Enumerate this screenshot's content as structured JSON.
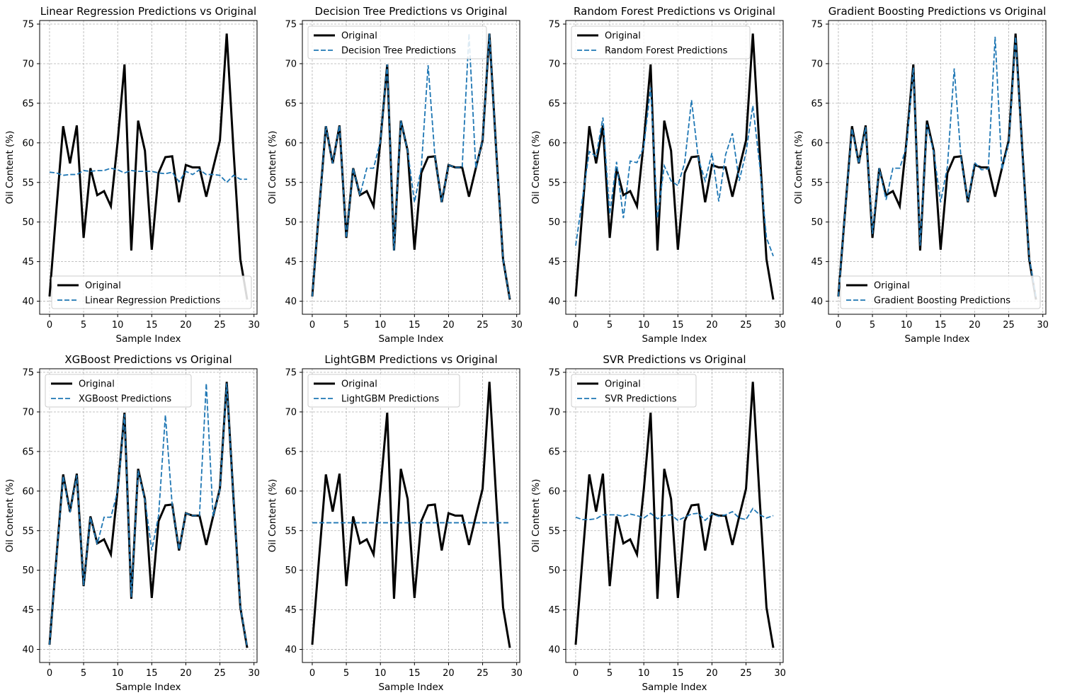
{
  "figure": {
    "original_color": "#000000",
    "prediction_color": "#1f77b4",
    "grid": true
  },
  "chart_data": [
    {
      "type": "line",
      "title": "Linear Regression Predictions vs Original",
      "xlabel": "Sample Index",
      "ylabel": "Oil Content (%)",
      "xlim": [
        -1.45,
        30.45
      ],
      "ylim": [
        38.35,
        75.45
      ],
      "xticks": [
        "0",
        "5",
        "10",
        "15",
        "20",
        "25",
        "30"
      ],
      "yticks": [
        "40",
        "45",
        "50",
        "55",
        "60",
        "65",
        "70",
        "75"
      ],
      "legend_position": "lower right",
      "x": [
        0,
        1,
        2,
        3,
        4,
        5,
        6,
        7,
        8,
        9,
        10,
        11,
        12,
        13,
        14,
        15,
        16,
        17,
        18,
        19,
        20,
        21,
        22,
        23,
        24,
        25,
        26,
        27,
        28,
        29
      ],
      "series": [
        {
          "name": "Original",
          "style": "solid",
          "values": [
            40.6,
            51.5,
            62.1,
            57.4,
            62.2,
            48.0,
            56.8,
            53.4,
            53.9,
            52.0,
            60.2,
            69.9,
            46.4,
            62.8,
            59.0,
            46.5,
            56.2,
            58.2,
            58.3,
            52.5,
            57.2,
            56.9,
            56.9,
            53.2,
            56.8,
            60.3,
            73.8,
            59.0,
            45.3,
            40.2
          ]
        },
        {
          "name": "Linear Regression Predictions",
          "style": "dashed",
          "values": [
            56.3,
            56.2,
            55.9,
            56.0,
            56.0,
            56.5,
            56.4,
            56.5,
            56.5,
            56.8,
            56.6,
            56.2,
            56.5,
            56.4,
            56.4,
            56.4,
            56.2,
            56.1,
            56.3,
            55.1,
            56.4,
            56.0,
            56.6,
            56.0,
            56.0,
            55.9,
            55.0,
            55.9,
            55.4,
            55.4
          ]
        }
      ]
    },
    {
      "type": "line",
      "title": "Decision Tree Predictions vs Original",
      "xlabel": "Sample Index",
      "ylabel": "Oil Content (%)",
      "xlim": [
        -1.45,
        30.45
      ],
      "ylim": [
        38.35,
        75.45
      ],
      "xticks": [
        "0",
        "5",
        "10",
        "15",
        "20",
        "25",
        "30"
      ],
      "yticks": [
        "40",
        "45",
        "50",
        "55",
        "60",
        "65",
        "70",
        "75"
      ],
      "legend_position": "upper left",
      "x": [
        0,
        1,
        2,
        3,
        4,
        5,
        6,
        7,
        8,
        9,
        10,
        11,
        12,
        13,
        14,
        15,
        16,
        17,
        18,
        19,
        20,
        21,
        22,
        23,
        24,
        25,
        26,
        27,
        28,
        29
      ],
      "series": [
        {
          "name": "Original",
          "style": "solid",
          "values": [
            40.6,
            51.5,
            62.1,
            57.4,
            62.2,
            48.0,
            56.8,
            53.4,
            53.9,
            52.0,
            60.2,
            69.9,
            46.4,
            62.8,
            59.0,
            46.5,
            56.2,
            58.2,
            58.3,
            52.5,
            57.2,
            56.9,
            56.9,
            53.2,
            56.8,
            60.3,
            73.8,
            59.0,
            45.3,
            40.2
          ]
        },
        {
          "name": "Decision Tree Predictions",
          "style": "dashed",
          "values": [
            40.6,
            51.5,
            62.1,
            57.4,
            62.2,
            48.0,
            56.8,
            53.4,
            56.8,
            56.8,
            60.2,
            69.9,
            46.4,
            62.8,
            59.0,
            52.5,
            56.8,
            69.8,
            58.3,
            52.5,
            57.2,
            56.9,
            56.9,
            73.8,
            56.8,
            60.3,
            73.8,
            59.0,
            45.3,
            40.2
          ]
        }
      ]
    },
    {
      "type": "line",
      "title": "Random Forest Predictions vs Original",
      "xlabel": "Sample Index",
      "ylabel": "Oil Content (%)",
      "xlim": [
        -1.45,
        30.45
      ],
      "ylim": [
        38.35,
        75.45
      ],
      "xticks": [
        "0",
        "5",
        "10",
        "15",
        "20",
        "25",
        "30"
      ],
      "yticks": [
        "40",
        "45",
        "50",
        "55",
        "60",
        "65",
        "70",
        "75"
      ],
      "legend_position": "upper left",
      "x": [
        0,
        1,
        2,
        3,
        4,
        5,
        6,
        7,
        8,
        9,
        10,
        11,
        12,
        13,
        14,
        15,
        16,
        17,
        18,
        19,
        20,
        21,
        22,
        23,
        24,
        25,
        26,
        27,
        28,
        29
      ],
      "series": [
        {
          "name": "Original",
          "style": "solid",
          "values": [
            40.6,
            51.5,
            62.1,
            57.4,
            62.2,
            48.0,
            56.8,
            53.4,
            53.9,
            52.0,
            60.2,
            69.9,
            46.4,
            62.8,
            59.0,
            46.5,
            56.2,
            58.2,
            58.3,
            52.5,
            57.2,
            56.9,
            56.9,
            53.2,
            56.8,
            60.3,
            73.8,
            59.0,
            45.3,
            40.2
          ]
        },
        {
          "name": "Random Forest Predictions",
          "style": "dashed",
          "values": [
            47.0,
            53.0,
            58.9,
            58.3,
            63.2,
            51.0,
            57.6,
            50.5,
            57.7,
            57.5,
            59.5,
            67.0,
            50.5,
            57.1,
            55.2,
            54.6,
            57.5,
            65.4,
            58.0,
            55.2,
            58.7,
            52.6,
            58.5,
            61.2,
            55.2,
            58.8,
            64.7,
            57.2,
            48.0,
            45.7
          ]
        }
      ]
    },
    {
      "type": "line",
      "title": "Gradient Boosting Predictions vs Original",
      "xlabel": "Sample Index",
      "ylabel": "Oil Content (%)",
      "xlim": [
        -1.45,
        30.45
      ],
      "ylim": [
        38.35,
        75.45
      ],
      "xticks": [
        "0",
        "5",
        "10",
        "15",
        "20",
        "25",
        "30"
      ],
      "yticks": [
        "40",
        "45",
        "50",
        "55",
        "60",
        "65",
        "70",
        "75"
      ],
      "legend_position": "lower right",
      "x": [
        0,
        1,
        2,
        3,
        4,
        5,
        6,
        7,
        8,
        9,
        10,
        11,
        12,
        13,
        14,
        15,
        16,
        17,
        18,
        19,
        20,
        21,
        22,
        23,
        24,
        25,
        26,
        27,
        28,
        29
      ],
      "series": [
        {
          "name": "Original",
          "style": "solid",
          "values": [
            40.6,
            51.5,
            62.1,
            57.4,
            62.2,
            48.0,
            56.8,
            53.4,
            53.9,
            52.0,
            60.2,
            69.9,
            46.4,
            62.8,
            59.0,
            46.5,
            56.2,
            58.2,
            58.3,
            52.5,
            57.2,
            56.9,
            56.9,
            53.2,
            56.8,
            60.3,
            73.8,
            59.0,
            45.3,
            40.2
          ]
        },
        {
          "name": "Gradient Boosting Predictions",
          "style": "dashed",
          "values": [
            40.6,
            51.5,
            61.8,
            57.4,
            62.0,
            48.5,
            56.8,
            52.8,
            56.8,
            56.8,
            59.5,
            69.5,
            47.0,
            62.3,
            58.8,
            52.5,
            57.0,
            69.4,
            58.0,
            52.6,
            57.5,
            56.6,
            56.7,
            73.4,
            56.6,
            60.0,
            73.4,
            58.8,
            45.5,
            40.5
          ]
        }
      ]
    },
    {
      "type": "line",
      "title": "XGBoost Predictions vs Original",
      "xlabel": "Sample Index",
      "ylabel": "Oil Content (%)",
      "xlim": [
        -1.45,
        30.45
      ],
      "ylim": [
        38.35,
        75.45
      ],
      "xticks": [
        "0",
        "5",
        "10",
        "15",
        "20",
        "25",
        "30"
      ],
      "yticks": [
        "40",
        "45",
        "50",
        "55",
        "60",
        "65",
        "70",
        "75"
      ],
      "legend_position": "upper left",
      "x": [
        0,
        1,
        2,
        3,
        4,
        5,
        6,
        7,
        8,
        9,
        10,
        11,
        12,
        13,
        14,
        15,
        16,
        17,
        18,
        19,
        20,
        21,
        22,
        23,
        24,
        25,
        26,
        27,
        28,
        29
      ],
      "series": [
        {
          "name": "Original",
          "style": "solid",
          "values": [
            40.6,
            51.5,
            62.1,
            57.4,
            62.2,
            48.0,
            56.8,
            53.4,
            53.9,
            52.0,
            60.2,
            69.9,
            46.4,
            62.8,
            59.0,
            46.5,
            56.2,
            58.2,
            58.3,
            52.5,
            57.2,
            56.9,
            56.9,
            53.2,
            56.8,
            60.3,
            73.8,
            59.0,
            45.3,
            40.2
          ]
        },
        {
          "name": "XGBoost Predictions",
          "style": "dashed",
          "values": [
            40.6,
            51.4,
            61.9,
            57.3,
            62.0,
            48.1,
            56.7,
            53.3,
            56.7,
            56.7,
            60.0,
            69.7,
            46.6,
            62.6,
            58.9,
            52.5,
            56.9,
            69.6,
            58.2,
            52.6,
            57.2,
            56.9,
            56.9,
            73.6,
            56.8,
            60.2,
            73.6,
            59.0,
            45.4,
            40.3
          ]
        }
      ]
    },
    {
      "type": "line",
      "title": "LightGBM Predictions vs Original",
      "xlabel": "Sample Index",
      "ylabel": "Oil Content (%)",
      "xlim": [
        -1.45,
        30.45
      ],
      "ylim": [
        38.35,
        75.45
      ],
      "xticks": [
        "0",
        "5",
        "10",
        "15",
        "20",
        "25",
        "30"
      ],
      "yticks": [
        "40",
        "45",
        "50",
        "55",
        "60",
        "65",
        "70",
        "75"
      ],
      "legend_position": "upper left",
      "x": [
        0,
        1,
        2,
        3,
        4,
        5,
        6,
        7,
        8,
        9,
        10,
        11,
        12,
        13,
        14,
        15,
        16,
        17,
        18,
        19,
        20,
        21,
        22,
        23,
        24,
        25,
        26,
        27,
        28,
        29
      ],
      "series": [
        {
          "name": "Original",
          "style": "solid",
          "values": [
            40.6,
            51.5,
            62.1,
            57.4,
            62.2,
            48.0,
            56.8,
            53.4,
            53.9,
            52.0,
            60.2,
            69.9,
            46.4,
            62.8,
            59.0,
            46.5,
            56.2,
            58.2,
            58.3,
            52.5,
            57.2,
            56.9,
            56.9,
            53.2,
            56.8,
            60.3,
            73.8,
            59.0,
            45.3,
            40.2
          ]
        },
        {
          "name": "LightGBM Predictions",
          "style": "dashed",
          "values": [
            56.0,
            56.0,
            56.0,
            56.0,
            56.0,
            56.0,
            56.0,
            56.0,
            56.0,
            56.0,
            56.0,
            56.0,
            56.0,
            56.0,
            56.0,
            56.0,
            56.0,
            56.0,
            56.0,
            56.0,
            56.0,
            56.0,
            56.0,
            56.0,
            56.0,
            56.0,
            56.0,
            56.0,
            56.0,
            56.0
          ]
        }
      ]
    },
    {
      "type": "line",
      "title": "SVR Predictions vs Original",
      "xlabel": "Sample Index",
      "ylabel": "Oil Content (%)",
      "xlim": [
        -1.45,
        30.45
      ],
      "ylim": [
        38.35,
        75.45
      ],
      "xticks": [
        "0",
        "5",
        "10",
        "15",
        "20",
        "25",
        "30"
      ],
      "yticks": [
        "40",
        "45",
        "50",
        "55",
        "60",
        "65",
        "70",
        "75"
      ],
      "legend_position": "upper left",
      "x": [
        0,
        1,
        2,
        3,
        4,
        5,
        6,
        7,
        8,
        9,
        10,
        11,
        12,
        13,
        14,
        15,
        16,
        17,
        18,
        19,
        20,
        21,
        22,
        23,
        24,
        25,
        26,
        27,
        28,
        29
      ],
      "series": [
        {
          "name": "Original",
          "style": "solid",
          "values": [
            40.6,
            51.5,
            62.1,
            57.4,
            62.2,
            48.0,
            56.8,
            53.4,
            53.9,
            52.0,
            60.2,
            69.9,
            46.4,
            62.8,
            59.0,
            46.5,
            56.2,
            58.2,
            58.3,
            52.5,
            57.2,
            56.9,
            56.9,
            53.2,
            56.8,
            60.3,
            73.8,
            59.0,
            45.3,
            40.2
          ]
        },
        {
          "name": "SVR Predictions",
          "style": "dashed",
          "values": [
            56.7,
            56.4,
            56.4,
            56.5,
            57.0,
            57.0,
            57.0,
            56.8,
            57.1,
            56.9,
            56.6,
            57.2,
            56.5,
            56.9,
            57.0,
            56.3,
            56.7,
            57.1,
            57.2,
            56.3,
            57.1,
            56.8,
            57.0,
            57.4,
            56.6,
            56.4,
            57.8,
            57.0,
            56.6,
            56.9
          ]
        }
      ]
    }
  ]
}
